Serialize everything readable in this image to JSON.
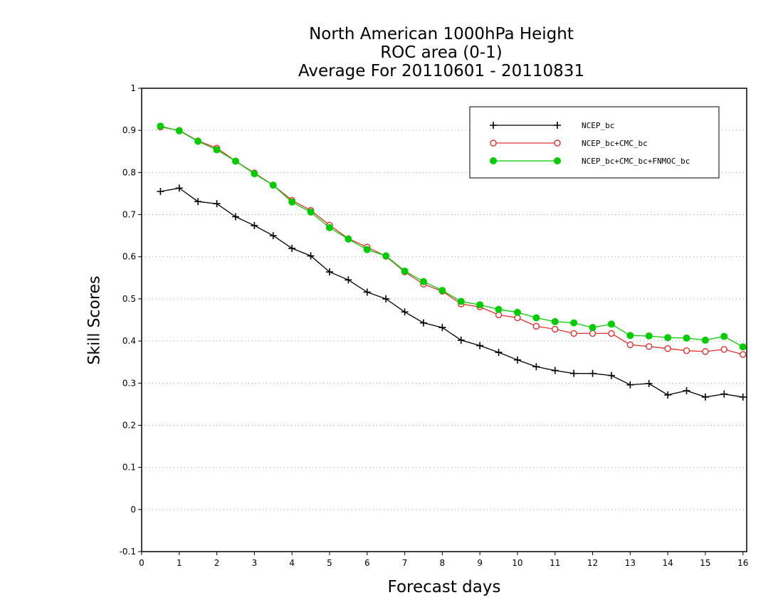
{
  "chart_data": {
    "type": "line",
    "title_lines": [
      "North American 1000hPa Height",
      "ROC area (0-1)",
      "Average For 20110601 - 20110831"
    ],
    "xlabel": "Forecast days",
    "ylabel": "Skill Scores",
    "xlim": [
      0,
      16.1
    ],
    "ylim": [
      -0.1,
      1
    ],
    "x_ticks": [
      0,
      1,
      2,
      3,
      4,
      5,
      6,
      7,
      8,
      9,
      10,
      11,
      12,
      13,
      14,
      15,
      16
    ],
    "y_ticks": [
      -0.1,
      0,
      0.1,
      0.2,
      0.3,
      0.4,
      0.5,
      0.6,
      0.7,
      0.8,
      0.9,
      1
    ],
    "y_tick_labels": [
      "-0.1",
      "0",
      "0.1",
      "0.2",
      "0.3",
      "0.4",
      "0.5",
      "0.6",
      "0.7",
      "0.8",
      "0.9",
      "1"
    ],
    "grid": "horizontal dotted",
    "legend_position": "top-right",
    "x": [
      0.5,
      1,
      1.5,
      2,
      2.5,
      3,
      3.5,
      4,
      4.5,
      5,
      5.5,
      6,
      6.5,
      7,
      7.5,
      8,
      8.5,
      9,
      9.5,
      10,
      10.5,
      11,
      11.5,
      12,
      12.5,
      13,
      13.5,
      14,
      14.5,
      15,
      15.5,
      16
    ],
    "series": [
      {
        "name": "NCEP_bc",
        "color": "#000000",
        "marker": "plus",
        "values": [
          0.755,
          0.763,
          0.731,
          0.726,
          0.695,
          0.674,
          0.65,
          0.62,
          0.602,
          0.564,
          0.545,
          0.516,
          0.5,
          0.469,
          0.443,
          0.432,
          0.402,
          0.389,
          0.373,
          0.355,
          0.339,
          0.33,
          0.323,
          0.323,
          0.318,
          0.296,
          0.299,
          0.272,
          0.282,
          0.267,
          0.274,
          0.267
        ]
      },
      {
        "name": "NCEP_bc+CMC_bc",
        "color": "#e03030",
        "marker": "open-circle",
        "values": [
          0.908,
          0.9,
          0.875,
          0.858,
          0.827,
          0.799,
          0.77,
          0.734,
          0.71,
          0.675,
          0.643,
          0.623,
          0.601,
          0.564,
          0.535,
          0.518,
          0.488,
          0.481,
          0.462,
          0.455,
          0.435,
          0.428,
          0.418,
          0.418,
          0.418,
          0.391,
          0.387,
          0.382,
          0.377,
          0.375,
          0.38,
          0.368
        ]
      },
      {
        "name": "NCEP_bc+CMC_bc+FNMOC_bc",
        "color": "#00cc00",
        "marker": "filled-circle",
        "values": [
          0.91,
          0.899,
          0.874,
          0.854,
          0.827,
          0.797,
          0.77,
          0.73,
          0.706,
          0.669,
          0.642,
          0.617,
          0.602,
          0.566,
          0.541,
          0.52,
          0.494,
          0.486,
          0.475,
          0.468,
          0.455,
          0.446,
          0.443,
          0.432,
          0.44,
          0.413,
          0.412,
          0.408,
          0.407,
          0.402,
          0.411,
          0.386
        ]
      }
    ]
  }
}
